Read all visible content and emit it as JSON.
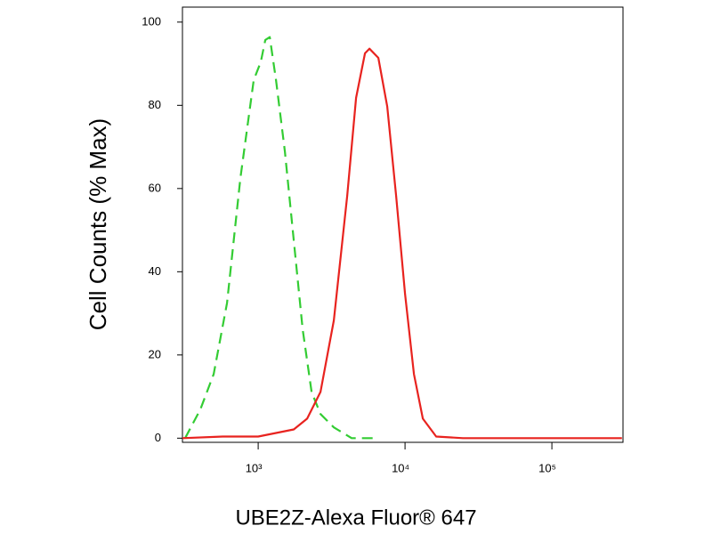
{
  "chart_data": {
    "type": "line",
    "xscale": "log",
    "xlabel": "UBE2Z-Alexa Fluor® 647",
    "ylabel": "Cell Counts (% Max)",
    "xlim": [
      305,
      305000
    ],
    "ylim": [
      -1,
      103.6
    ],
    "xticks": [
      {
        "value": 1000,
        "label": "10³"
      },
      {
        "value": 10000,
        "label": "10⁴"
      },
      {
        "value": 100000,
        "label": "10⁵"
      }
    ],
    "yticks": [
      0,
      20,
      40,
      60,
      80,
      100
    ],
    "series": [
      {
        "color": "#33cc33",
        "dash": true,
        "x": [
          318,
          404,
          498,
          614,
          757,
          933,
          1042,
          1118,
          1199,
          1322,
          1520,
          1748,
          2009,
          2310,
          2656,
          3274,
          4329,
          6136
        ],
        "values": [
          0,
          6.9,
          15.4,
          32.5,
          62.5,
          86.1,
          90.4,
          95.7,
          96.4,
          86.1,
          68.9,
          47.5,
          26.1,
          11.1,
          5.8,
          2.6,
          0,
          0
        ]
      },
      {
        "color": "#e8231f",
        "dash": false,
        "x": [
          305,
          573,
          1000,
          1748,
          2154,
          2656,
          3274,
          4037,
          4642,
          5337,
          5722,
          6579,
          7565,
          8697,
          10000,
          11500,
          13216,
          16298,
          24771,
          300000
        ],
        "values": [
          0,
          0.4,
          0.4,
          2.1,
          4.7,
          11.1,
          28.3,
          58.2,
          81.8,
          92.5,
          93.6,
          91.4,
          79.7,
          58.2,
          34.7,
          15.4,
          4.7,
          0.4,
          0,
          0
        ]
      }
    ]
  }
}
